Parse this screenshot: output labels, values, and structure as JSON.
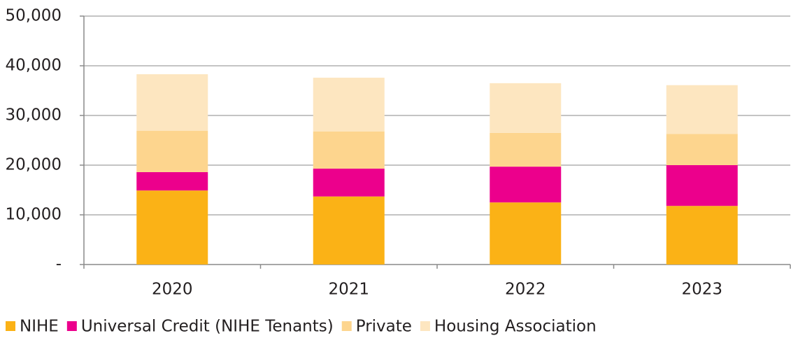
{
  "chart_data": {
    "type": "stacked_bar",
    "categories": [
      "2020",
      "2021",
      "2022",
      "2023"
    ],
    "series": [
      {
        "name": "NIHE",
        "color": "#fbb216",
        "values": [
          14900,
          13700,
          12500,
          11800
        ]
      },
      {
        "name": "Universal Credit (NIHE Tenants)",
        "color": "#ec008c",
        "values": [
          3700,
          5600,
          7200,
          8200
        ]
      },
      {
        "name": "Private",
        "color": "#fdd58e",
        "values": [
          8300,
          7500,
          6800,
          6300
        ]
      },
      {
        "name": "Housing Association",
        "color": "#fde6c0",
        "values": [
          11400,
          10800,
          10000,
          9800
        ]
      }
    ],
    "ylim": [
      0,
      50000
    ],
    "yticks": [
      {
        "value": 0,
        "label": "-"
      },
      {
        "value": 10000,
        "label": "10,000"
      },
      {
        "value": 20000,
        "label": "20,000"
      },
      {
        "value": 30000,
        "label": "30,000"
      },
      {
        "value": 40000,
        "label": "40,000"
      },
      {
        "value": 50000,
        "label": "50,000"
      }
    ],
    "grid": true,
    "legend": "bottom"
  }
}
